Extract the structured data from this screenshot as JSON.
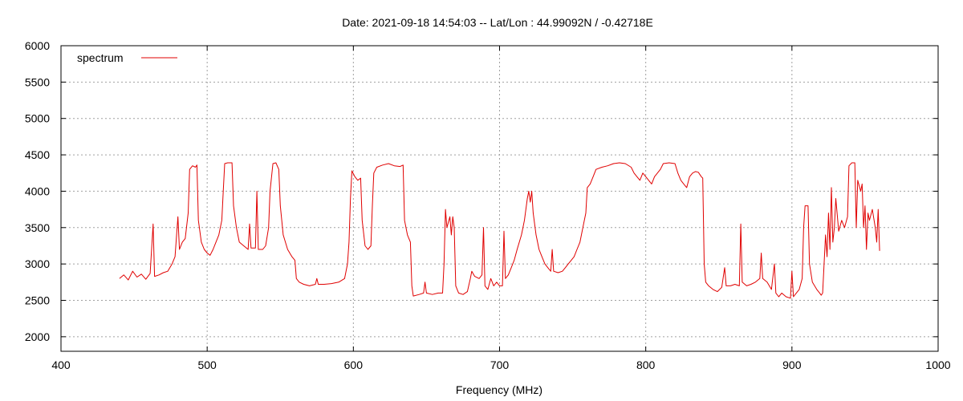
{
  "chart_data": {
    "type": "line",
    "title": "Date: 2021-09-18 14:54:03  --  Lat/Lon : 44.99092N / -0.42718E",
    "xlabel": "Frequency (MHz)",
    "ylabel": "",
    "xlim": [
      400,
      1000
    ],
    "ylim": [
      1800,
      6000
    ],
    "x_ticks": [
      400,
      500,
      600,
      700,
      800,
      900,
      1000
    ],
    "y_ticks": [
      2000,
      2500,
      3000,
      3500,
      4000,
      4500,
      5000,
      5500,
      6000
    ],
    "grid": true,
    "legend_position": "top-left",
    "series": [
      {
        "name": "spectrum",
        "color": "#e00000",
        "points": [
          [
            440,
            2800
          ],
          [
            443,
            2850
          ],
          [
            446,
            2780
          ],
          [
            449,
            2900
          ],
          [
            452,
            2820
          ],
          [
            455,
            2860
          ],
          [
            458,
            2790
          ],
          [
            461,
            2870
          ],
          [
            463,
            3550
          ],
          [
            464,
            2830
          ],
          [
            467,
            2850
          ],
          [
            470,
            2880
          ],
          [
            473,
            2900
          ],
          [
            476,
            3000
          ],
          [
            478,
            3100
          ],
          [
            480,
            3650
          ],
          [
            481,
            3200
          ],
          [
            483,
            3300
          ],
          [
            485,
            3350
          ],
          [
            487,
            3700
          ],
          [
            488,
            4300
          ],
          [
            490,
            4350
          ],
          [
            492,
            4330
          ],
          [
            493,
            4360
          ],
          [
            494,
            3600
          ],
          [
            496,
            3300
          ],
          [
            498,
            3200
          ],
          [
            500,
            3150
          ],
          [
            502,
            3120
          ],
          [
            504,
            3200
          ],
          [
            506,
            3300
          ],
          [
            508,
            3400
          ],
          [
            510,
            3600
          ],
          [
            511,
            4000
          ],
          [
            512,
            4380
          ],
          [
            514,
            4390
          ],
          [
            517,
            4390
          ],
          [
            518,
            3800
          ],
          [
            520,
            3500
          ],
          [
            522,
            3300
          ],
          [
            525,
            3250
          ],
          [
            528,
            3200
          ],
          [
            529,
            3550
          ],
          [
            530,
            3220
          ],
          [
            533,
            3220
          ],
          [
            534,
            4000
          ],
          [
            535,
            3200
          ],
          [
            538,
            3200
          ],
          [
            540,
            3250
          ],
          [
            542,
            3500
          ],
          [
            543,
            4000
          ],
          [
            545,
            4380
          ],
          [
            547,
            4390
          ],
          [
            549,
            4300
          ],
          [
            550,
            3800
          ],
          [
            552,
            3400
          ],
          [
            555,
            3200
          ],
          [
            558,
            3100
          ],
          [
            560,
            3050
          ],
          [
            561,
            2800
          ],
          [
            563,
            2750
          ],
          [
            566,
            2720
          ],
          [
            570,
            2700
          ],
          [
            574,
            2720
          ],
          [
            575,
            2800
          ],
          [
            576,
            2720
          ],
          [
            580,
            2720
          ],
          [
            585,
            2730
          ],
          [
            590,
            2750
          ],
          [
            594,
            2800
          ],
          [
            596,
            3000
          ],
          [
            597,
            3300
          ],
          [
            598,
            3900
          ],
          [
            599,
            4280
          ],
          [
            601,
            4200
          ],
          [
            603,
            4150
          ],
          [
            605,
            4180
          ],
          [
            606,
            3600
          ],
          [
            608,
            3250
          ],
          [
            610,
            3200
          ],
          [
            612,
            3250
          ],
          [
            613,
            3800
          ],
          [
            614,
            4250
          ],
          [
            616,
            4330
          ],
          [
            620,
            4360
          ],
          [
            624,
            4380
          ],
          [
            628,
            4350
          ],
          [
            632,
            4340
          ],
          [
            634,
            4360
          ],
          [
            635,
            3600
          ],
          [
            637,
            3400
          ],
          [
            639,
            3300
          ],
          [
            640,
            2700
          ],
          [
            641,
            2560
          ],
          [
            645,
            2580
          ],
          [
            648,
            2600
          ],
          [
            649,
            2750
          ],
          [
            650,
            2600
          ],
          [
            654,
            2580
          ],
          [
            658,
            2600
          ],
          [
            661,
            2600
          ],
          [
            662,
            3000
          ],
          [
            663,
            3750
          ],
          [
            664,
            3500
          ],
          [
            666,
            3650
          ],
          [
            667,
            3400
          ],
          [
            668,
            3650
          ],
          [
            669,
            3500
          ],
          [
            670,
            2700
          ],
          [
            672,
            2600
          ],
          [
            675,
            2580
          ],
          [
            678,
            2620
          ],
          [
            680,
            2800
          ],
          [
            681,
            2900
          ],
          [
            683,
            2830
          ],
          [
            686,
            2800
          ],
          [
            688,
            2850
          ],
          [
            689,
            3500
          ],
          [
            690,
            2700
          ],
          [
            692,
            2650
          ],
          [
            694,
            2800
          ],
          [
            696,
            2700
          ],
          [
            698,
            2750
          ],
          [
            700,
            2700
          ],
          [
            702,
            2700
          ],
          [
            703,
            3450
          ],
          [
            704,
            2800
          ],
          [
            706,
            2850
          ],
          [
            708,
            2950
          ],
          [
            710,
            3050
          ],
          [
            712,
            3200
          ],
          [
            715,
            3400
          ],
          [
            717,
            3600
          ],
          [
            719,
            3900
          ],
          [
            720,
            4000
          ],
          [
            721,
            3850
          ],
          [
            722,
            4000
          ],
          [
            723,
            3700
          ],
          [
            725,
            3400
          ],
          [
            727,
            3200
          ],
          [
            729,
            3100
          ],
          [
            731,
            3000
          ],
          [
            733,
            2950
          ],
          [
            735,
            2900
          ],
          [
            736,
            3200
          ],
          [
            737,
            2900
          ],
          [
            740,
            2880
          ],
          [
            743,
            2900
          ],
          [
            745,
            2950
          ],
          [
            747,
            3000
          ],
          [
            749,
            3050
          ],
          [
            751,
            3100
          ],
          [
            753,
            3200
          ],
          [
            755,
            3300
          ],
          [
            757,
            3500
          ],
          [
            759,
            3700
          ],
          [
            760,
            4050
          ],
          [
            762,
            4100
          ],
          [
            764,
            4200
          ],
          [
            766,
            4300
          ],
          [
            770,
            4330
          ],
          [
            774,
            4350
          ],
          [
            778,
            4380
          ],
          [
            782,
            4390
          ],
          [
            786,
            4380
          ],
          [
            790,
            4330
          ],
          [
            792,
            4250
          ],
          [
            794,
            4200
          ],
          [
            796,
            4150
          ],
          [
            798,
            4250
          ],
          [
            800,
            4200
          ],
          [
            802,
            4150
          ],
          [
            804,
            4100
          ],
          [
            806,
            4200
          ],
          [
            808,
            4250
          ],
          [
            810,
            4300
          ],
          [
            812,
            4380
          ],
          [
            816,
            4390
          ],
          [
            820,
            4380
          ],
          [
            822,
            4250
          ],
          [
            824,
            4150
          ],
          [
            826,
            4100
          ],
          [
            828,
            4050
          ],
          [
            830,
            4200
          ],
          [
            832,
            4250
          ],
          [
            834,
            4270
          ],
          [
            836,
            4260
          ],
          [
            838,
            4200
          ],
          [
            839,
            4180
          ],
          [
            840,
            3000
          ],
          [
            841,
            2750
          ],
          [
            843,
            2700
          ],
          [
            846,
            2650
          ],
          [
            849,
            2620
          ],
          [
            852,
            2680
          ],
          [
            854,
            2950
          ],
          [
            855,
            2700
          ],
          [
            858,
            2700
          ],
          [
            861,
            2720
          ],
          [
            864,
            2700
          ],
          [
            865,
            3550
          ],
          [
            866,
            2750
          ],
          [
            869,
            2700
          ],
          [
            872,
            2720
          ],
          [
            875,
            2750
          ],
          [
            878,
            2800
          ],
          [
            879,
            3150
          ],
          [
            880,
            2800
          ],
          [
            883,
            2750
          ],
          [
            886,
            2650
          ],
          [
            888,
            3000
          ],
          [
            889,
            2600
          ],
          [
            891,
            2550
          ],
          [
            893,
            2600
          ],
          [
            896,
            2550
          ],
          [
            899,
            2530
          ],
          [
            900,
            2900
          ],
          [
            901,
            2550
          ],
          [
            903,
            2600
          ],
          [
            905,
            2650
          ],
          [
            907,
            2800
          ],
          [
            908,
            3500
          ],
          [
            909,
            3800
          ],
          [
            911,
            3800
          ],
          [
            912,
            3000
          ],
          [
            914,
            2750
          ],
          [
            917,
            2650
          ],
          [
            919,
            2600
          ],
          [
            920,
            2570
          ],
          [
            921,
            2600
          ],
          [
            922,
            3000
          ],
          [
            923,
            3400
          ],
          [
            924,
            3100
          ],
          [
            925,
            3700
          ],
          [
            926,
            3200
          ],
          [
            927,
            4050
          ],
          [
            928,
            3300
          ],
          [
            929,
            3500
          ],
          [
            930,
            3900
          ],
          [
            932,
            3450
          ],
          [
            934,
            3600
          ],
          [
            936,
            3500
          ],
          [
            938,
            3650
          ],
          [
            939,
            4350
          ],
          [
            941,
            4390
          ],
          [
            943,
            4390
          ],
          [
            944,
            3500
          ],
          [
            945,
            4150
          ],
          [
            947,
            4000
          ],
          [
            948,
            4100
          ],
          [
            949,
            3500
          ],
          [
            950,
            3800
          ],
          [
            951,
            3200
          ],
          [
            952,
            3700
          ],
          [
            953,
            3600
          ],
          [
            955,
            3750
          ],
          [
            957,
            3500
          ],
          [
            958,
            3300
          ],
          [
            959,
            3750
          ],
          [
            960,
            3180
          ]
        ]
      }
    ]
  }
}
